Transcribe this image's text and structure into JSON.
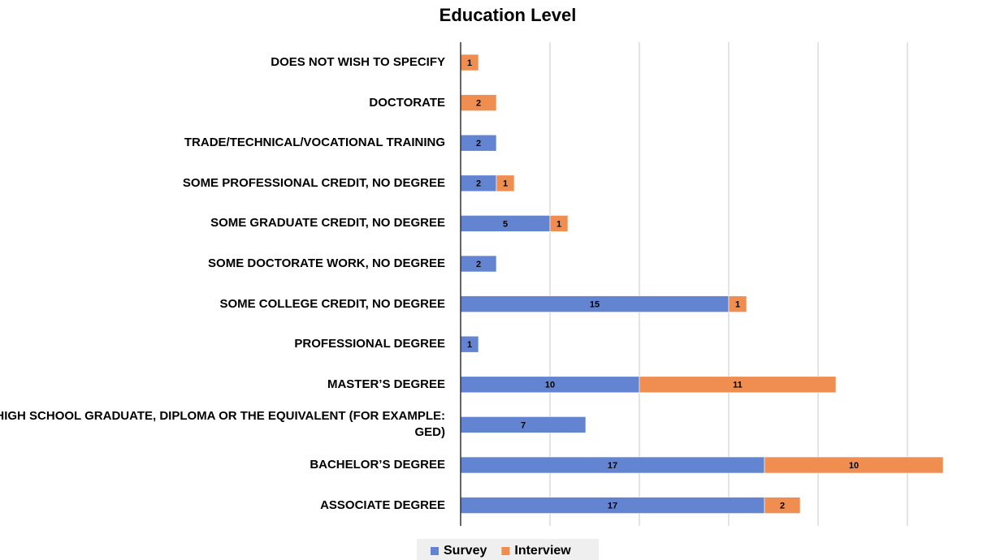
{
  "chart_data": {
    "type": "stacked-barh",
    "title": "Education Level",
    "categories": [
      "DOES NOT WISH TO SPECIFY",
      "DOCTORATE",
      "TRADE/TECHNICAL/VOCATIONAL TRAINING",
      "SOME PROFESSIONAL CREDIT, NO DEGREE",
      "SOME GRADUATE CREDIT, NO DEGREE",
      "SOME DOCTORATE WORK, NO DEGREE",
      "SOME COLLEGE CREDIT, NO DEGREE",
      "PROFESSIONAL DEGREE",
      "MASTER’S DEGREE",
      "HIGH SCHOOL GRADUATE, DIPLOMA OR THE EQUIVALENT (FOR EXAMPLE: GED)",
      "BACHELOR’S DEGREE",
      "ASSOCIATE DEGREE"
    ],
    "series": [
      {
        "name": "Survey",
        "color": "#6384d1",
        "values": [
          null,
          null,
          2,
          2,
          5,
          2,
          15,
          1,
          10,
          7,
          17,
          17
        ]
      },
      {
        "name": "Interview",
        "color": "#f08d50",
        "values": [
          1,
          2,
          null,
          1,
          1,
          null,
          1,
          null,
          11,
          null,
          10,
          2
        ]
      }
    ],
    "xlim": [
      0,
      27.5
    ],
    "xticks": [
      0,
      5,
      10,
      15,
      20,
      25
    ],
    "grid": true,
    "legend": "bottom"
  }
}
